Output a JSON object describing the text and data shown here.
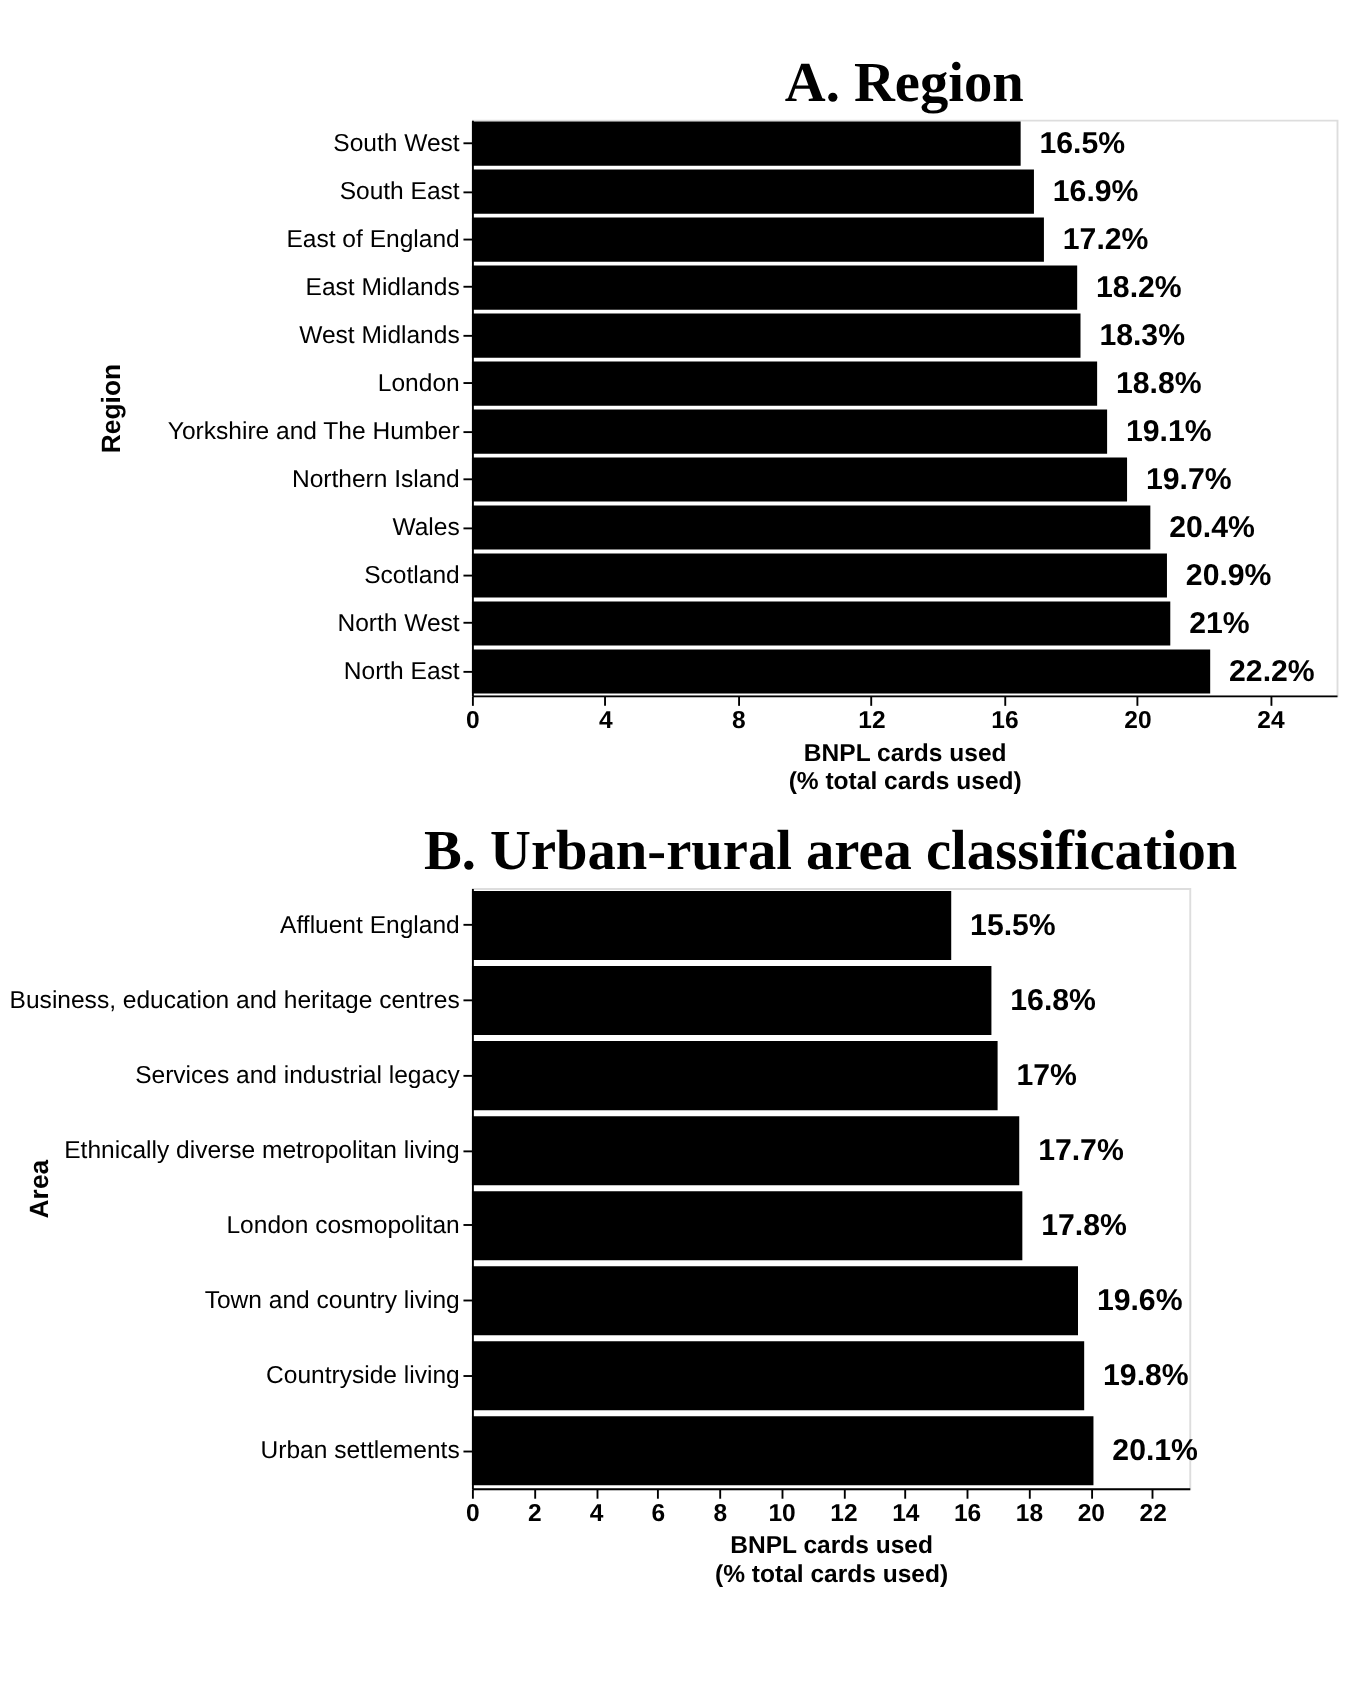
{
  "chart_data": [
    {
      "type": "bar",
      "orientation": "horizontal",
      "title": "A. Region",
      "ylabel": "Region",
      "xlabel": "BNPL cards used\n(% total cards used)",
      "categories": [
        "South West",
        "South East",
        "East of England",
        "East Midlands",
        "West Midlands",
        "London",
        "Yorkshire and The Humber",
        "Northern Island",
        "Wales",
        "Scotland",
        "North West",
        "North East"
      ],
      "values": [
        16.5,
        16.9,
        17.2,
        18.2,
        18.3,
        18.8,
        19.1,
        19.7,
        20.4,
        20.9,
        21,
        22.2
      ],
      "color": "#000000",
      "value_labels": [
        "16.5%",
        "16.9%",
        "17.2%",
        "18.2%",
        "18.3%",
        "18.8%",
        "19.1%",
        "19.7%",
        "20.4%",
        "20.9%",
        "21%",
        "22.2%"
      ],
      "xlim": [
        0,
        26
      ],
      "xticks": [
        0,
        4,
        8,
        12,
        16,
        20,
        24
      ],
      "grid": false
    },
    {
      "type": "bar",
      "orientation": "horizontal",
      "title": "B. Urban-rural area classification",
      "ylabel": "Area",
      "xlabel": "BNPL cards used\n(% total cards used)",
      "categories": [
        "Affluent England",
        "Business, education and heritage centres",
        "Services and industrial legacy",
        "Ethnically diverse metropolitan  living",
        "London cosmopolitan",
        "Town and country living",
        "Countryside living",
        "Urban settlements"
      ],
      "values": [
        15.5,
        16.8,
        17,
        17.7,
        17.8,
        19.6,
        19.8,
        20.1
      ],
      "color": "#000000",
      "value_labels": [
        "15.5%",
        "16.8%",
        "17%",
        "17.7%",
        "17.8%",
        "19.6%",
        "19.8%",
        "20.1%"
      ],
      "xlim": [
        0,
        23.2
      ],
      "xticks": [
        0,
        2,
        4,
        6,
        8,
        10,
        12,
        14,
        16,
        18,
        20,
        22
      ],
      "grid": false
    }
  ]
}
